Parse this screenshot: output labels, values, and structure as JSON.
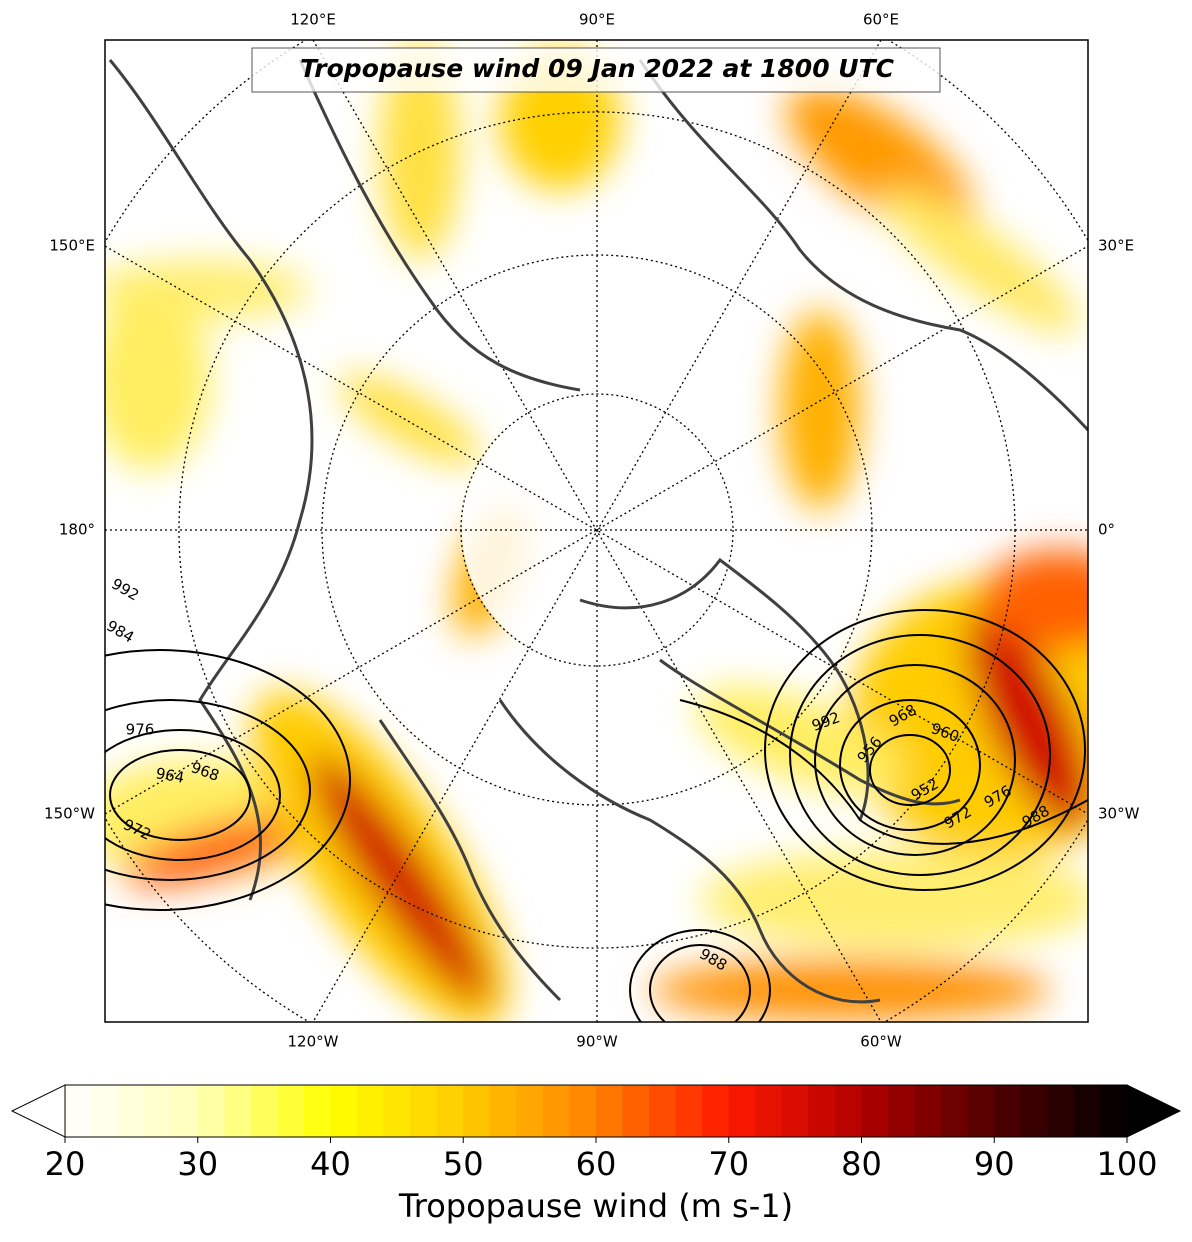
{
  "title": "Tropopause wind 09 Jan 2022 at 1800 UTC",
  "map": {
    "top_labels": [
      "120°E",
      "90°E",
      "60°E"
    ],
    "bottom_labels": [
      "120°W",
      "90°W",
      "60°W"
    ],
    "left_labels": [
      "150°E",
      "180°",
      "150°W"
    ],
    "right_labels": [
      "30°E",
      "0°",
      "30°W"
    ],
    "contour_labels": [
      992,
      984,
      976,
      964,
      968,
      972,
      992,
      968,
      960,
      956,
      952,
      976,
      972,
      988,
      988
    ]
  },
  "colorbar": {
    "label": "Tropopause wind (m s-1)",
    "lim": [
      20,
      100
    ],
    "ticks": [
      20,
      30,
      40,
      50,
      60,
      70,
      80,
      90,
      100
    ],
    "colors": [
      "#ffffff",
      "#ffffb8",
      "#ffff00",
      "#ffcc00",
      "#ff8000",
      "#ff1a00",
      "#b00000",
      "#500000",
      "#000000"
    ]
  }
}
